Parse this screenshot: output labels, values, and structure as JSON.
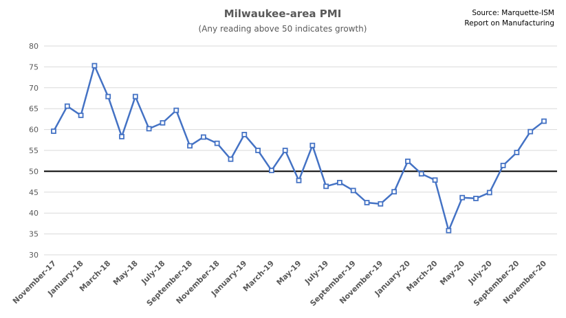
{
  "chart_data": {
    "type": "line",
    "title": "Milwaukee-area PMI",
    "subtitle": "(Any reading above 50 indicates growth)",
    "source_line1": "Source: Marquette-ISM",
    "source_line2": "Report on Manufacturing",
    "ylim": [
      30,
      80
    ],
    "yticks": [
      30,
      35,
      40,
      45,
      50,
      55,
      60,
      65,
      70,
      75,
      80
    ],
    "reference_line": 50,
    "grid": true,
    "colors": {
      "series": "#4472C4",
      "reference": "#000000",
      "grid": "#d9d9d9"
    },
    "tick_labels": [
      "November-17",
      "January-18",
      "March-18",
      "May-18",
      "July-18",
      "September-18",
      "November-18",
      "January-19",
      "March-19",
      "May-19",
      "July-19",
      "September-19",
      "November-19",
      "January-20",
      "March-20",
      "May-20",
      "July-20",
      "September-20",
      "November-20"
    ],
    "series": [
      {
        "values": [
          59.6,
          65.6,
          63.4,
          75.3,
          67.9,
          58.3,
          67.9,
          60.2,
          61.6,
          64.6,
          56.1,
          58.2,
          56.7,
          52.9,
          58.8,
          55.0,
          50.2,
          55.0,
          47.8,
          56.2,
          46.4,
          47.3,
          45.4,
          42.5,
          42.2,
          45.1,
          52.4,
          49.4,
          47.9,
          35.8,
          43.7,
          43.5,
          44.9,
          51.4,
          54.5,
          59.5,
          62.0
        ]
      }
    ]
  }
}
